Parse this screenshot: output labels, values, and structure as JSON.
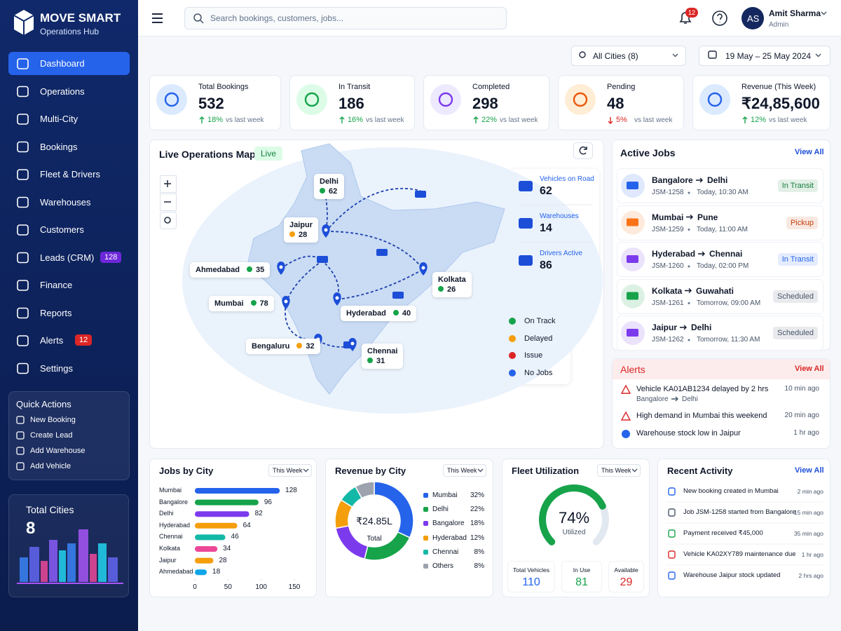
{
  "brand": {
    "name": "MOVE SMART",
    "subtitle": "Operations Hub"
  },
  "nav": [
    {
      "label": "Dashboard",
      "active": true
    },
    {
      "label": "Operations"
    },
    {
      "label": "Multi-City"
    },
    {
      "label": "Bookings"
    },
    {
      "label": "Fleet & Drivers"
    },
    {
      "label": "Warehouses"
    },
    {
      "label": "Customers"
    },
    {
      "label": "Leads (CRM)",
      "badge": "128",
      "badge_color": "#6d28d9"
    },
    {
      "label": "Finance"
    },
    {
      "label": "Reports"
    },
    {
      "label": "Alerts",
      "badge": "12",
      "badge_color": "#dc2626"
    },
    {
      "label": "Settings"
    }
  ],
  "quick_actions": {
    "title": "Quick Actions",
    "items": [
      "New Booking",
      "Create Lead",
      "Add Warehouse",
      "Add Vehicle"
    ]
  },
  "total_cities": {
    "label": "Total Cities",
    "value": "8"
  },
  "search_placeholder": "Search bookings, customers, jobs...",
  "notifications": "12",
  "user": {
    "initials": "AS",
    "name": "Amit Sharma",
    "role": "Admin"
  },
  "filters": {
    "city": "All Cities (8)",
    "date": "19 May – 25 May 2024"
  },
  "kpis": [
    {
      "label": "Total Bookings",
      "value": "532",
      "change": "18%",
      "note": "vs last week",
      "trend": "up",
      "color": "#2563eb",
      "bg": "#dbeafe"
    },
    {
      "label": "In Transit",
      "value": "186",
      "change": "16%",
      "note": "vs last week",
      "trend": "up",
      "color": "#16a34a",
      "bg": "#dcfce7"
    },
    {
      "label": "Completed",
      "value": "298",
      "change": "22%",
      "note": "vs last week",
      "trend": "up",
      "color": "#7c3aed",
      "bg": "#ede9fe"
    },
    {
      "label": "Pending",
      "value": "48",
      "change": "5%",
      "note": "vs last week",
      "trend": "down",
      "color": "#ea580c",
      "bg": "#ffedd5"
    },
    {
      "label": "Revenue (This Week)",
      "value": "₹24,85,600",
      "change": "12%",
      "note": "vs last week",
      "trend": "up",
      "color": "#2563eb",
      "bg": "#dbeafe"
    }
  ],
  "map": {
    "title": "Live Operations Map",
    "status": "Live",
    "cities": [
      {
        "name": "Delhi",
        "count": "62",
        "color": "#16a34a"
      },
      {
        "name": "Jaipur",
        "count": "28",
        "color": "#f59e0b"
      },
      {
        "name": "Ahmedabad",
        "count": "35",
        "color": "#16a34a"
      },
      {
        "name": "Mumbai",
        "count": "78",
        "color": "#16a34a"
      },
      {
        "name": "Hyderabad",
        "count": "40",
        "color": "#16a34a"
      },
      {
        "name": "Kolkata",
        "count": "26",
        "color": "#16a34a"
      },
      {
        "name": "Bengaluru",
        "count": "32",
        "color": "#f59e0b"
      },
      {
        "name": "Chennai",
        "count": "31",
        "color": "#16a34a"
      }
    ],
    "stats": [
      {
        "label": "Vehicles on Road",
        "value": "62"
      },
      {
        "label": "Warehouses",
        "value": "14"
      },
      {
        "label": "Drivers Active",
        "value": "86"
      }
    ],
    "legend": [
      {
        "label": "On Track",
        "color": "#16a34a"
      },
      {
        "label": "Delayed",
        "color": "#f59e0b"
      },
      {
        "label": "Issue",
        "color": "#dc2626"
      },
      {
        "label": "No Jobs",
        "color": "#2563eb"
      }
    ]
  },
  "active_jobs": {
    "title": "Active Jobs",
    "link": "View All",
    "jobs": [
      {
        "from": "Bangalore",
        "to": "Delhi",
        "id": "JSM-1258",
        "time": "Today, 10:30 AM",
        "status": "In Transit",
        "icon_color": "#2563eb",
        "status_color": "#15803d"
      },
      {
        "from": "Mumbai",
        "to": "Pune",
        "id": "JSM-1259",
        "time": "Today, 11:00 AM",
        "status": "Pickup",
        "icon_color": "#f97316",
        "status_color": "#c2410c"
      },
      {
        "from": "Hyderabad",
        "to": "Chennai",
        "id": "JSM-1260",
        "time": "Today, 02:00 PM",
        "status": "In Transit",
        "icon_color": "#7c3aed",
        "status_color": "#2563eb"
      },
      {
        "from": "Kolkata",
        "to": "Guwahati",
        "id": "JSM-1261",
        "time": "Tomorrow, 09:00 AM",
        "status": "Scheduled",
        "icon_color": "#16a34a",
        "status_color": "#475569"
      },
      {
        "from": "Jaipur",
        "to": "Delhi",
        "id": "JSM-1262",
        "time": "Tomorrow, 11:30 AM",
        "status": "Scheduled",
        "icon_color": "#7c3aed",
        "status_color": "#475569"
      }
    ]
  },
  "alerts": {
    "title": "Alerts",
    "link": "View All",
    "items": [
      {
        "text": "Vehicle KA01AB1234 delayed by 2 hrs",
        "route_from": "Bangalore",
        "route_to": "Delhi",
        "time": "10 min ago",
        "color": "#dc2626"
      },
      {
        "text": "High demand in Mumbai this weekend",
        "time": "20 min ago",
        "color": "#dc2626"
      },
      {
        "text": "Warehouse stock low in Jaipur",
        "time": "1 hr ago",
        "color": "#2563eb"
      }
    ]
  },
  "jobs_by_city": {
    "type": "bar",
    "title": "Jobs by City",
    "period": "This Week",
    "categories": [
      "Mumbai",
      "Bangalore",
      "Delhi",
      "Hyderabad",
      "Chennai",
      "Kolkata",
      "Jaipur",
      "Ahmedabad"
    ],
    "values": [
      128,
      96,
      82,
      64,
      46,
      34,
      28,
      18
    ],
    "colors": [
      "#2563eb",
      "#16a34a",
      "#7c3aed",
      "#f59e0b",
      "#14b8a6",
      "#ec4899",
      "#f59e0b",
      "#0ea5e9"
    ],
    "xlim": [
      0,
      150
    ],
    "xticks": [
      0,
      50,
      100,
      150
    ]
  },
  "revenue_by_city": {
    "type": "donut",
    "title": "Revenue by City",
    "period": "This Week",
    "categories": [
      "Mumbai",
      "Delhi",
      "Bangalore",
      "Hyderabad",
      "Chennai",
      "Others"
    ],
    "values": [
      32,
      22,
      18,
      12,
      8,
      8
    ],
    "value_labels": [
      "32%",
      "22%",
      "18%",
      "12%",
      "8%",
      "8%"
    ],
    "colors": [
      "#2563eb",
      "#16a34a",
      "#7c3aed",
      "#f59e0b",
      "#14b8a6",
      "#9ca3af"
    ],
    "center_value": "₹24.85L",
    "center_label": "Total"
  },
  "fleet_utilization": {
    "type": "gauge",
    "title": "Fleet Utilization",
    "period": "This Week",
    "value": 74,
    "value_label": "74%",
    "label": "Utilized",
    "ylim": [
      0,
      100
    ],
    "color": "#16a34a",
    "stats": [
      {
        "label": "Total Vehicles",
        "value": "110",
        "color": "#2563eb"
      },
      {
        "label": "In Use",
        "value": "81",
        "color": "#16a34a"
      },
      {
        "label": "Available",
        "value": "29",
        "color": "#dc2626"
      }
    ]
  },
  "recent_activity": {
    "title": "Recent Activity",
    "link": "View All",
    "items": [
      {
        "text": "New booking created in Mumbai",
        "time": "2 min ago",
        "color": "#2563eb"
      },
      {
        "text": "Job JSM-1258 started from Bangalore",
        "time": "15 min ago",
        "color": "#475569"
      },
      {
        "text": "Payment received ₹45,000",
        "time": "35 min ago",
        "color": "#16a34a"
      },
      {
        "text": "Vehicle KA02XY789 maintenance due",
        "time": "1 hr ago",
        "color": "#dc2626"
      },
      {
        "text": "Warehouse Jaipur stock updated",
        "time": "2 hrs ago",
        "color": "#2563eb"
      }
    ]
  }
}
